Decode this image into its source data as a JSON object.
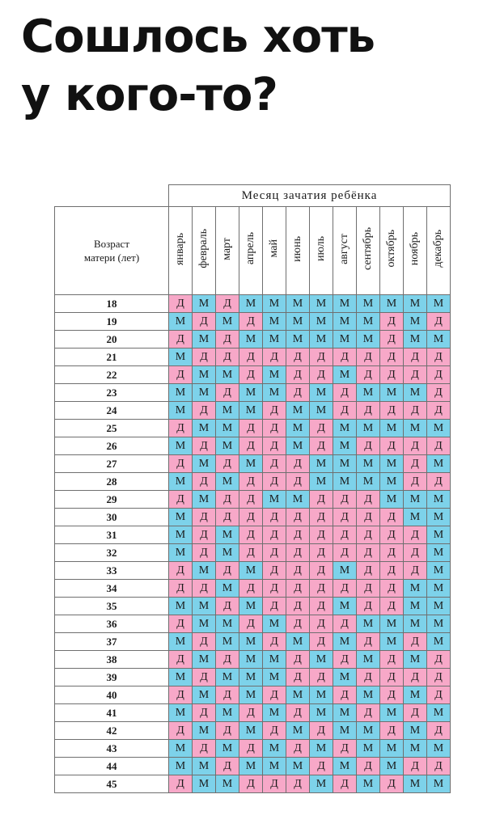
{
  "headline": {
    "line1": "Сошлось хоть",
    "line2": "у кого-то?"
  },
  "table": {
    "title": "Месяц зачатия ребёнка",
    "age_header_line1": "Возраст",
    "age_header_line2": "матери (лет)",
    "months": [
      "январь",
      "февраль",
      "март",
      "апрель",
      "май",
      "июнь",
      "июль",
      "август",
      "сентябрь",
      "октябрь",
      "ноябрь",
      "декабрь"
    ],
    "legend": {
      "boy": "М",
      "girl": "Д"
    },
    "colors": {
      "boy": "#7dd2ea",
      "girl": "#f7a8c8"
    },
    "rows": [
      {
        "age": "18",
        "cells": [
          "Д",
          "М",
          "Д",
          "М",
          "М",
          "М",
          "М",
          "М",
          "М",
          "М",
          "М",
          "М"
        ]
      },
      {
        "age": "19",
        "cells": [
          "М",
          "Д",
          "М",
          "Д",
          "М",
          "М",
          "М",
          "М",
          "М",
          "Д",
          "М",
          "Д"
        ]
      },
      {
        "age": "20",
        "cells": [
          "Д",
          "М",
          "Д",
          "М",
          "М",
          "М",
          "М",
          "М",
          "М",
          "Д",
          "М",
          "М"
        ]
      },
      {
        "age": "21",
        "cells": [
          "М",
          "Д",
          "Д",
          "Д",
          "Д",
          "Д",
          "Д",
          "Д",
          "Д",
          "Д",
          "Д",
          "Д"
        ]
      },
      {
        "age": "22",
        "cells": [
          "Д",
          "М",
          "М",
          "Д",
          "М",
          "Д",
          "Д",
          "М",
          "Д",
          "Д",
          "Д",
          "Д"
        ]
      },
      {
        "age": "23",
        "cells": [
          "М",
          "М",
          "Д",
          "М",
          "М",
          "Д",
          "М",
          "Д",
          "М",
          "М",
          "М",
          "Д"
        ]
      },
      {
        "age": "24",
        "cells": [
          "М",
          "Д",
          "М",
          "М",
          "Д",
          "М",
          "М",
          "Д",
          "Д",
          "Д",
          "Д",
          "Д"
        ]
      },
      {
        "age": "25",
        "cells": [
          "Д",
          "М",
          "М",
          "Д",
          "Д",
          "М",
          "Д",
          "М",
          "М",
          "М",
          "М",
          "М"
        ]
      },
      {
        "age": "26",
        "cells": [
          "М",
          "Д",
          "М",
          "Д",
          "Д",
          "М",
          "Д",
          "М",
          "Д",
          "Д",
          "Д",
          "Д"
        ]
      },
      {
        "age": "27",
        "cells": [
          "Д",
          "М",
          "Д",
          "М",
          "Д",
          "Д",
          "М",
          "М",
          "М",
          "М",
          "Д",
          "М"
        ]
      },
      {
        "age": "28",
        "cells": [
          "М",
          "Д",
          "М",
          "Д",
          "Д",
          "Д",
          "М",
          "М",
          "М",
          "М",
          "Д",
          "Д"
        ]
      },
      {
        "age": "29",
        "cells": [
          "Д",
          "М",
          "Д",
          "Д",
          "М",
          "М",
          "Д",
          "Д",
          "Д",
          "М",
          "М",
          "М"
        ]
      },
      {
        "age": "30",
        "cells": [
          "М",
          "Д",
          "Д",
          "Д",
          "Д",
          "Д",
          "Д",
          "Д",
          "Д",
          "Д",
          "М",
          "М"
        ]
      },
      {
        "age": "31",
        "cells": [
          "М",
          "Д",
          "М",
          "Д",
          "Д",
          "Д",
          "Д",
          "Д",
          "Д",
          "Д",
          "Д",
          "М"
        ]
      },
      {
        "age": "32",
        "cells": [
          "М",
          "Д",
          "М",
          "Д",
          "Д",
          "Д",
          "Д",
          "Д",
          "Д",
          "Д",
          "Д",
          "М"
        ]
      },
      {
        "age": "33",
        "cells": [
          "Д",
          "М",
          "Д",
          "М",
          "Д",
          "Д",
          "Д",
          "М",
          "Д",
          "Д",
          "Д",
          "М"
        ]
      },
      {
        "age": "34",
        "cells": [
          "Д",
          "Д",
          "М",
          "Д",
          "Д",
          "Д",
          "Д",
          "Д",
          "Д",
          "Д",
          "М",
          "М"
        ]
      },
      {
        "age": "35",
        "cells": [
          "М",
          "М",
          "Д",
          "М",
          "Д",
          "Д",
          "Д",
          "М",
          "Д",
          "Д",
          "М",
          "М"
        ]
      },
      {
        "age": "36",
        "cells": [
          "Д",
          "М",
          "М",
          "Д",
          "М",
          "Д",
          "Д",
          "Д",
          "М",
          "М",
          "М",
          "М"
        ]
      },
      {
        "age": "37",
        "cells": [
          "М",
          "Д",
          "М",
          "М",
          "Д",
          "М",
          "Д",
          "М",
          "Д",
          "М",
          "Д",
          "М"
        ]
      },
      {
        "age": "38",
        "cells": [
          "Д",
          "М",
          "Д",
          "М",
          "М",
          "Д",
          "М",
          "Д",
          "М",
          "Д",
          "М",
          "Д"
        ]
      },
      {
        "age": "39",
        "cells": [
          "М",
          "Д",
          "М",
          "М",
          "М",
          "Д",
          "Д",
          "М",
          "Д",
          "Д",
          "Д",
          "Д"
        ]
      },
      {
        "age": "40",
        "cells": [
          "Д",
          "М",
          "Д",
          "М",
          "Д",
          "М",
          "М",
          "Д",
          "М",
          "Д",
          "М",
          "Д"
        ]
      },
      {
        "age": "41",
        "cells": [
          "М",
          "Д",
          "М",
          "Д",
          "М",
          "Д",
          "М",
          "М",
          "Д",
          "М",
          "Д",
          "М"
        ]
      },
      {
        "age": "42",
        "cells": [
          "Д",
          "М",
          "Д",
          "М",
          "Д",
          "М",
          "Д",
          "М",
          "М",
          "Д",
          "М",
          "Д"
        ]
      },
      {
        "age": "43",
        "cells": [
          "М",
          "Д",
          "М",
          "Д",
          "М",
          "Д",
          "М",
          "Д",
          "М",
          "М",
          "М",
          "М"
        ]
      },
      {
        "age": "44",
        "cells": [
          "М",
          "М",
          "Д",
          "М",
          "М",
          "М",
          "Д",
          "М",
          "Д",
          "М",
          "Д",
          "Д"
        ]
      },
      {
        "age": "45",
        "cells": [
          "Д",
          "М",
          "М",
          "Д",
          "Д",
          "Д",
          "М",
          "Д",
          "М",
          "Д",
          "М",
          "М"
        ]
      }
    ]
  }
}
